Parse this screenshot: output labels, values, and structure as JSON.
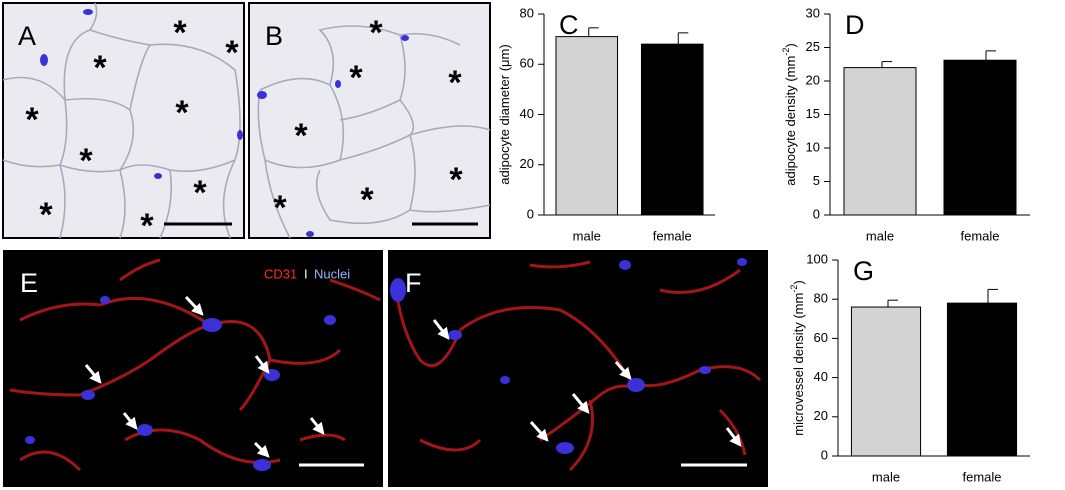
{
  "panels": [
    {
      "label": "A"
    },
    {
      "label": "B"
    },
    {
      "label": "E"
    },
    {
      "label": "F"
    }
  ],
  "marker": "*",
  "stain_labels": [
    "CD31",
    "I",
    "Nuclei"
  ],
  "chart_data": [
    {
      "type": "bar",
      "panel_label": "C",
      "y_label": [
        "adipocyte diameter (μm)"
      ],
      "categories": [
        "male",
        "female"
      ],
      "values": [
        71,
        68
      ],
      "errors": [
        3.5,
        4.5
      ],
      "colors": [
        "#d3d3d3",
        "#000000"
      ],
      "ylim": [
        0,
        80
      ],
      "yticks": [
        0,
        20,
        40,
        60,
        80
      ]
    },
    {
      "type": "bar",
      "panel_label": "D",
      "y_label": [
        "adipocyte density (mm",
        "-2",
        ")"
      ],
      "categories": [
        "male",
        "female"
      ],
      "values": [
        22,
        23.1
      ],
      "errors": [
        0.9,
        1.4
      ],
      "colors": [
        "#d3d3d3",
        "#000000"
      ],
      "ylim": [
        0,
        30
      ],
      "yticks": [
        0,
        5,
        10,
        15,
        20,
        25,
        30
      ]
    },
    {
      "type": "bar",
      "panel_label": "G",
      "y_label": [
        "microvessel density (mm",
        "-2",
        ")"
      ],
      "categories": [
        "male",
        "female"
      ],
      "values": [
        76,
        78
      ],
      "errors": [
        3.5,
        7
      ],
      "colors": [
        "#d3d3d3",
        "#000000"
      ],
      "ylim": [
        0,
        100
      ],
      "yticks": [
        0,
        20,
        40,
        60,
        80,
        100
      ]
    }
  ]
}
